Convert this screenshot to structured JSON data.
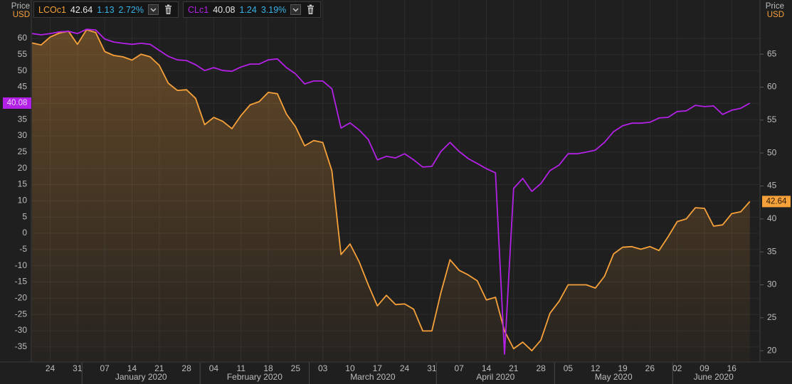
{
  "chart_data": {
    "type": "line",
    "y_label": "Price",
    "y_unit": "USD",
    "y2_label": "Price",
    "y2_unit": "USD",
    "categories": [
      null,
      null,
      "24",
      null,
      null,
      "31",
      null,
      null,
      "07",
      null,
      null,
      "14",
      null,
      null,
      "21",
      null,
      null,
      "28",
      null,
      null,
      "04",
      null,
      null,
      "11",
      null,
      null,
      "18",
      null,
      null,
      "25",
      null,
      null,
      "03",
      null,
      null,
      "10",
      null,
      null,
      "17",
      null,
      null,
      "24",
      null,
      null,
      "31",
      null,
      null,
      "07",
      null,
      null,
      "14",
      null,
      null,
      "21",
      null,
      null,
      "28",
      null,
      null,
      "05",
      null,
      null,
      "12",
      null,
      null,
      "19",
      null,
      null,
      "26",
      null,
      null,
      "02",
      null,
      null,
      "09",
      null,
      null,
      "16",
      null,
      null
    ],
    "x_groups": [
      {
        "label": "January 2020",
        "start": 6,
        "end": 18
      },
      {
        "label": "February 2020",
        "start": 19,
        "end": 30
      },
      {
        "label": "March 2020",
        "start": 31,
        "end": 44
      },
      {
        "label": "April 2020",
        "start": 45,
        "end": 57
      },
      {
        "label": "May 2020",
        "start": 58,
        "end": 70
      },
      {
        "label": "June 2020",
        "start": 71,
        "end": 79
      }
    ],
    "ylim": [
      -39.4,
      65.7
    ],
    "yticks": [
      60,
      55,
      50,
      45,
      40,
      35,
      30,
      25,
      20,
      15,
      10,
      5,
      0,
      -5,
      -10,
      -15,
      -20,
      -25,
      -30,
      -35
    ],
    "y2lim": [
      18.4,
      70.2
    ],
    "y2ticks": [
      65,
      60,
      55,
      50,
      45,
      40,
      35,
      30,
      25,
      20
    ],
    "grid": true,
    "series": [
      {
        "name": "LCOc1",
        "color": "#f7a13a",
        "axis": "y2",
        "area": true,
        "change": 1.13,
        "change_pct": "2.72%",
        "values": [
          66.7,
          66.4,
          67.6,
          68.2,
          68.5,
          66.5,
          68.7,
          68.3,
          65.4,
          64.8,
          64.6,
          64.1,
          65.0,
          64.6,
          63.3,
          60.6,
          59.5,
          59.6,
          58.3,
          54.3,
          55.4,
          54.8,
          53.7,
          55.7,
          57.3,
          57.8,
          59.2,
          59.0,
          55.9,
          54.0,
          51.1,
          51.9,
          51.6,
          47.3,
          34.6,
          36.2,
          33.5,
          30.0,
          26.8,
          28.4,
          27.0,
          27.1,
          26.3,
          23.0,
          23.0,
          28.8,
          33.8,
          32.2,
          31.5,
          30.6,
          27.7,
          28.1,
          23.0,
          20.3,
          21.3,
          20.0,
          21.6,
          25.7,
          27.5,
          30.0,
          30.0,
          30.0,
          29.5,
          31.3,
          34.7,
          35.7,
          35.8,
          35.4,
          35.8,
          35.2,
          37.3,
          39.6,
          40.0,
          41.7,
          41.6,
          38.9,
          39.1,
          40.8,
          41.1,
          42.64
        ]
      },
      {
        "name": "CLc1",
        "color": "#b321e6",
        "axis": "y",
        "area": false,
        "change": 1.24,
        "change_pct": "3.19%",
        "values": [
          61.5,
          61.1,
          61.5,
          62.0,
          62.2,
          61.5,
          62.8,
          62.6,
          59.8,
          58.9,
          58.5,
          58.2,
          58.5,
          58.2,
          56.3,
          54.5,
          53.4,
          53.2,
          51.9,
          50.1,
          51.0,
          50.1,
          49.9,
          51.2,
          52.1,
          52.1,
          53.4,
          53.7,
          51.0,
          49.1,
          46.0,
          46.9,
          46.9,
          44.5,
          32.4,
          34.0,
          31.8,
          28.9,
          22.6,
          23.7,
          23.2,
          24.5,
          22.6,
          20.4,
          20.6,
          25.2,
          28.0,
          25.2,
          23.0,
          21.5,
          19.9,
          18.6,
          -37.2,
          13.8,
          16.9,
          12.9,
          15.3,
          19.3,
          21.0,
          24.5,
          24.5,
          25.0,
          25.6,
          28.0,
          31.3,
          33.1,
          33.9,
          33.9,
          34.2,
          35.5,
          35.7,
          37.5,
          37.7,
          39.4,
          39.0,
          39.2,
          36.6,
          37.9,
          38.5,
          40.08
        ]
      }
    ]
  }
}
